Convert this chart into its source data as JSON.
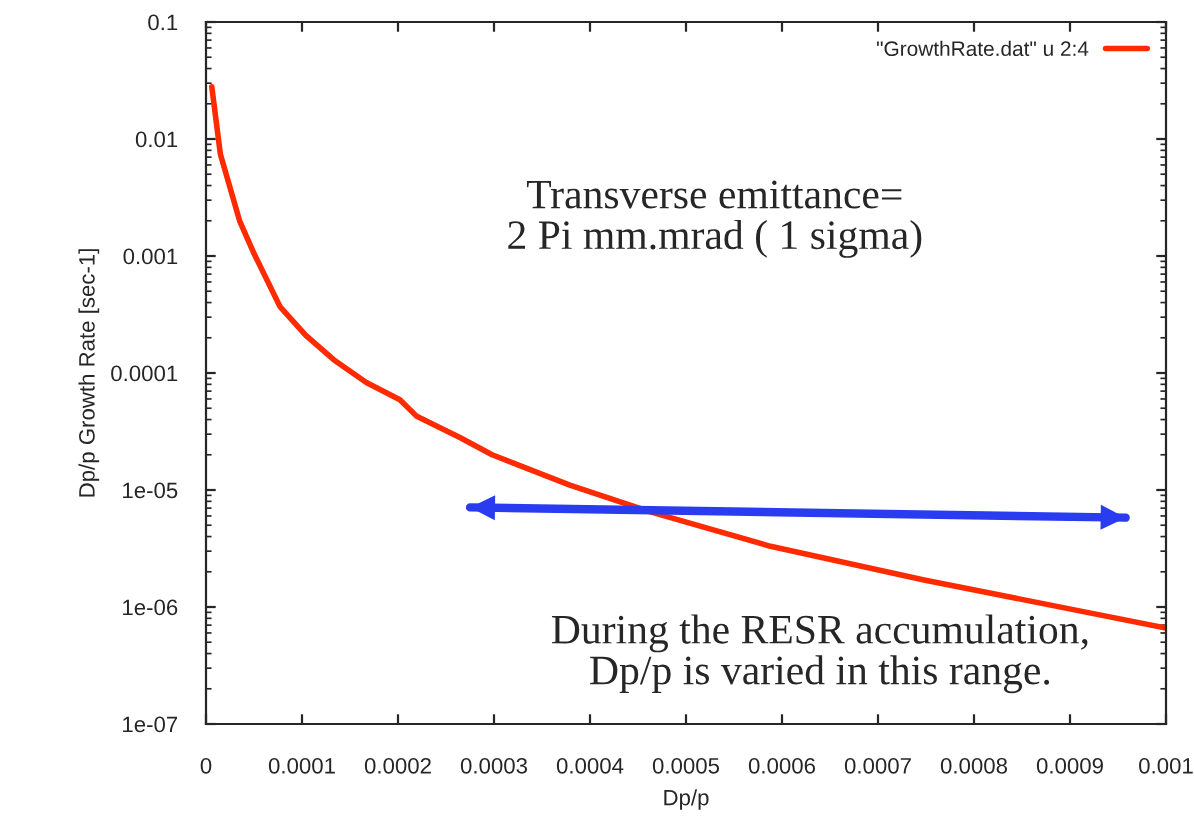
{
  "chart_data": {
    "type": "line",
    "xlabel": "Dp/p",
    "ylabel": "Dp/p Growth Rate [sec-1]",
    "log": "y",
    "grid": false,
    "legend": "top right",
    "line_style": "solid",
    "marker": "none",
    "xlim": [
      0,
      0.001
    ],
    "ylim": [
      1e-07,
      0.1
    ],
    "xticks": [
      {
        "value": 0,
        "label": "0"
      },
      {
        "value": 0.0001,
        "label": "0.0001"
      },
      {
        "value": 0.0002,
        "label": "0.0002"
      },
      {
        "value": 0.0003,
        "label": "0.0003"
      },
      {
        "value": 0.0004,
        "label": "0.0004"
      },
      {
        "value": 0.0005,
        "label": "0.0005"
      },
      {
        "value": 0.0006,
        "label": "0.0006"
      },
      {
        "value": 0.0007,
        "label": "0.0007"
      },
      {
        "value": 0.0008,
        "label": "0.0008"
      },
      {
        "value": 0.0009,
        "label": "0.0009"
      },
      {
        "value": 0.001,
        "label": "0.001"
      }
    ],
    "yticks": [
      {
        "value": 1e-07,
        "label": "1e-07"
      },
      {
        "value": 1e-06,
        "label": "1e-06"
      },
      {
        "value": 1e-05,
        "label": "1e-05"
      },
      {
        "value": 0.0001,
        "label": "0.0001"
      },
      {
        "value": 0.001,
        "label": "0.001"
      },
      {
        "value": 0.01,
        "label": "0.01"
      },
      {
        "value": 0.1,
        "label": "0.1"
      }
    ],
    "series": [
      {
        "name": "\"GrowthRate.dat\" u 2:4",
        "color": "#ff2a00",
        "x": [
          6e-06,
          1.5e-05,
          3.5e-05,
          5e-05,
          7.7e-05,
          0.000104,
          0.000133,
          0.000167,
          0.000202,
          0.000219,
          0.000265,
          0.000298,
          0.000379,
          0.000463,
          0.000588,
          0.000748,
          0.000906,
          0.001
        ],
        "values": [
          0.028,
          0.0074,
          0.002,
          0.00105,
          0.00037,
          0.00021,
          0.00013,
          8.3e-05,
          5.9e-05,
          4.3e-05,
          2.8e-05,
          2e-05,
          1.1e-05,
          6.5e-06,
          3.3e-06,
          1.7e-06,
          9.4e-07,
          6.6e-07
        ]
      },
      {
        "type": "line",
        "color": "#2a3cf0",
        "x": [
          0.000275,
          0.000958
        ],
        "values": [
          7.1e-06,
          5.8e-06
        ]
      }
    ],
    "annotations": [
      "Transverse emittance=\n2 Pi mm.mrad ( 1 sigma)",
      "During the RESR accumulation,\nDp/p is varied in this range."
    ]
  }
}
